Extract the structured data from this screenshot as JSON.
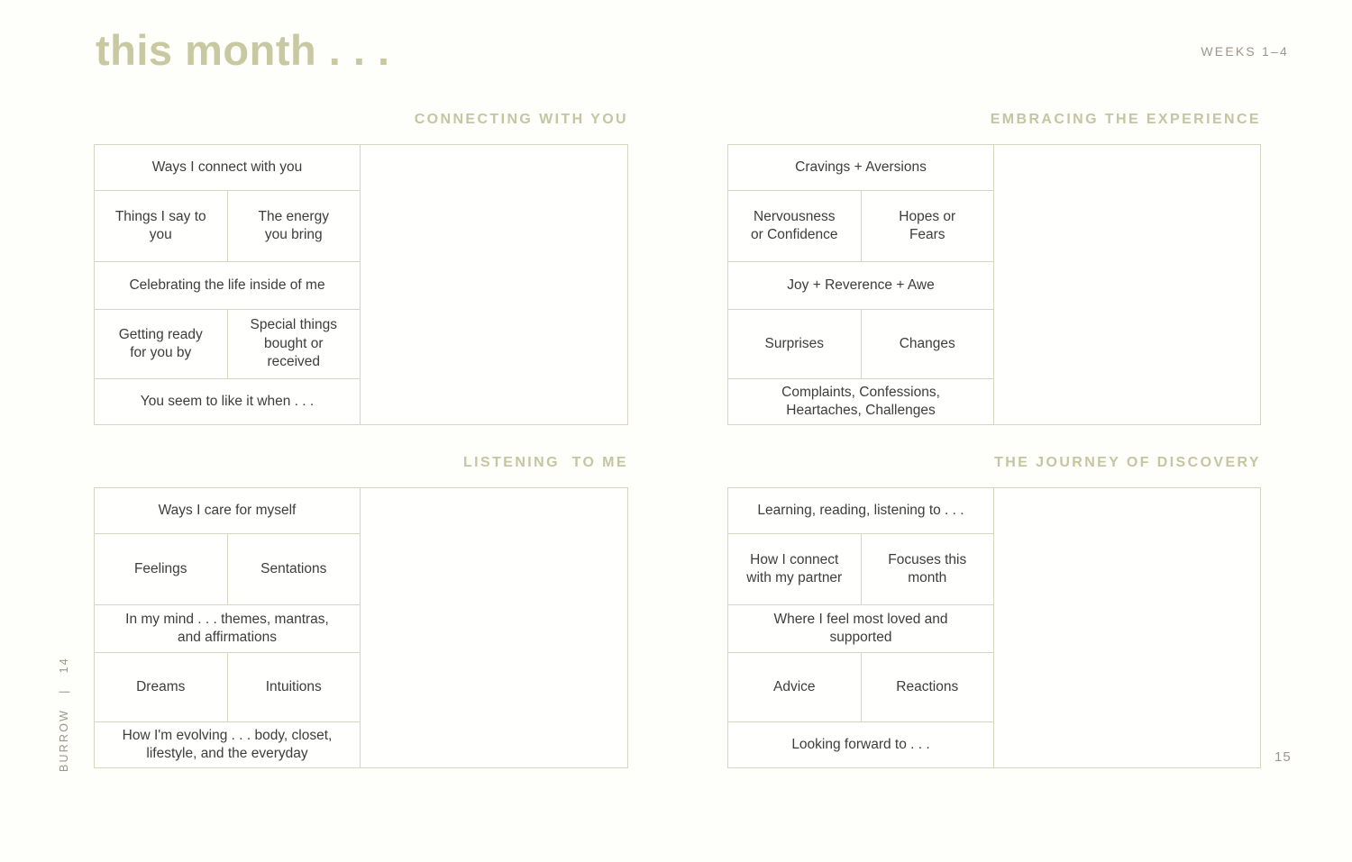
{
  "page": {
    "title": "this month . . .",
    "weeks_label": "WEEKS 1–4",
    "spine_label": "BURROW   |   14",
    "page_number": "15",
    "colors": {
      "accent_sage": "#c8c9a0",
      "heading_sage": "#c3c6a0",
      "muted_gray": "#9c978b",
      "border": "#d6d6c0",
      "text": "#3d3d3b"
    }
  },
  "sections": [
    {
      "heading": "CONNECTING WITH YOU",
      "rows": [
        {
          "type": "full",
          "label": "Ways I connect with you"
        },
        {
          "type": "split",
          "left": "Things I say to you",
          "right": "The energy you bring"
        },
        {
          "type": "full",
          "label": "Celebrating the life inside of me"
        },
        {
          "type": "split",
          "left": "Getting ready for you by",
          "right": "Special things bought or received"
        },
        {
          "type": "full",
          "label": "You seem to like it when . . ."
        }
      ]
    },
    {
      "heading": "EMBRACING THE EXPERIENCE",
      "rows": [
        {
          "type": "full",
          "label": "Cravings + Aversions"
        },
        {
          "type": "split",
          "left": "Nervousness or Confidence",
          "right": "Hopes or Fears"
        },
        {
          "type": "full",
          "label": "Joy + Reverence + Awe"
        },
        {
          "type": "split",
          "left": "Surprises",
          "right": "Changes"
        },
        {
          "type": "full",
          "label": "Complaints, Confessions, Heartaches, Challenges"
        }
      ]
    },
    {
      "heading": "LISTENING  TO ME",
      "rows": [
        {
          "type": "full",
          "label": "Ways I care for myself"
        },
        {
          "type": "split",
          "left": "Feelings",
          "right": "Sentations"
        },
        {
          "type": "full",
          "label": "In my mind . . . themes, mantras, and affirmations"
        },
        {
          "type": "split",
          "left": "Dreams",
          "right": "Intuitions"
        },
        {
          "type": "full",
          "label": "How I'm evolving . . . body, closet, lifestyle, and the everyday"
        }
      ]
    },
    {
      "heading": "THE JOURNEY OF DISCOVERY",
      "rows": [
        {
          "type": "full",
          "label": "Learning, reading, listening to . . ."
        },
        {
          "type": "split",
          "left": "How I connect with my partner",
          "right": "Focuses this month"
        },
        {
          "type": "full",
          "label": "Where I feel most loved and supported"
        },
        {
          "type": "split",
          "left": "Advice",
          "right": "Reactions"
        },
        {
          "type": "full",
          "label": "Looking forward to . . ."
        }
      ]
    }
  ]
}
